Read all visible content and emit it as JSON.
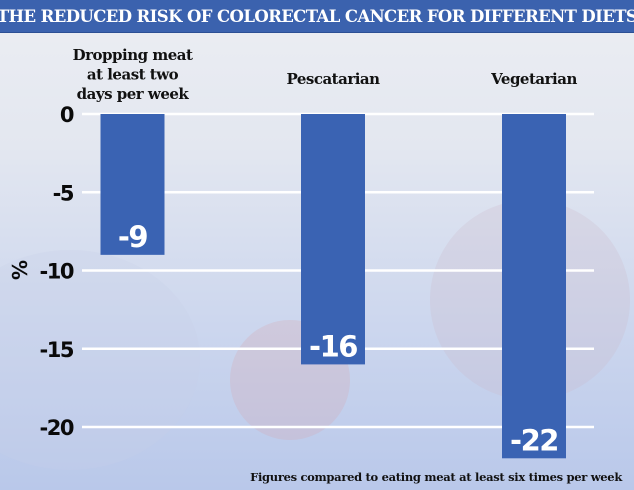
{
  "chart_data": {
    "type": "bar",
    "title": "THE REDUCED RISK OF COLORECTAL CANCER FOR DIFFERENT DIETS",
    "categories": [
      [
        "Dropping meat",
        "at least two",
        "days per week"
      ],
      [
        "Pescatarian"
      ],
      [
        "Vegetarian"
      ]
    ],
    "values": [
      -9,
      -16,
      -22
    ],
    "data_labels": [
      "-9",
      "-16",
      "-22"
    ],
    "xlabel": "",
    "ylabel": "%",
    "ylim": [
      -22,
      0
    ],
    "yticks": [
      0,
      -5,
      -10,
      -15,
      -20
    ],
    "ytick_labels": [
      "0",
      "-5",
      "-10",
      "-15",
      "-20"
    ],
    "grid": true,
    "bar_color": "#3a63b3",
    "footnote": "Figures compared to eating meat at least six times per week"
  }
}
